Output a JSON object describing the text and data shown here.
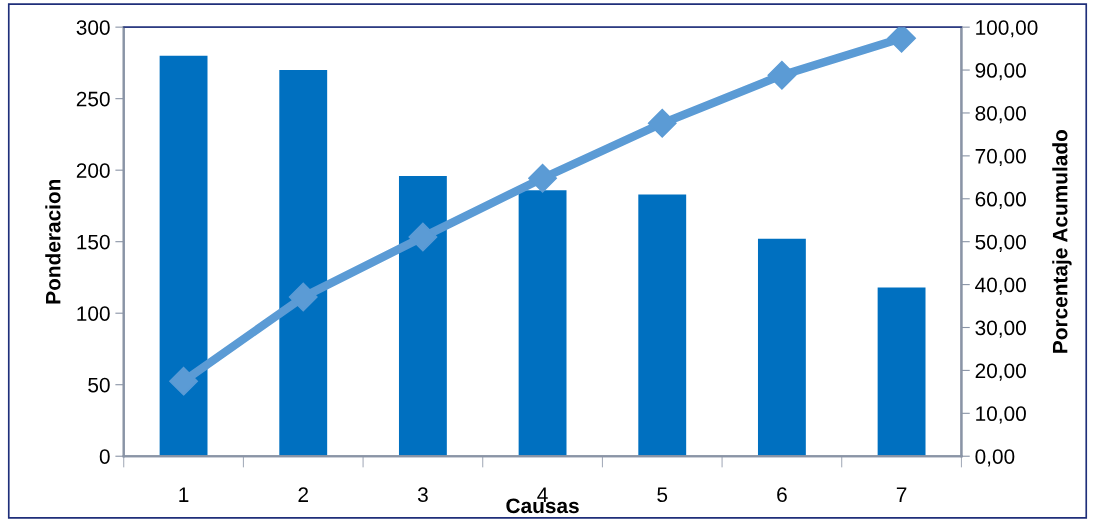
{
  "chart_data": {
    "type": "bar",
    "xlabel": "Causas",
    "ylabel": "Ponderacion",
    "y2label": "Porcentaje Acumulado",
    "categories": [
      "1",
      "2",
      "3",
      "4",
      "5",
      "6",
      "7"
    ],
    "series": [
      {
        "color": "#0070c0",
        "values": [
          280,
          270,
          196,
          186,
          183,
          152,
          118
        ]
      },
      {
        "type": "line",
        "axis": "y2",
        "color": "#5b9bd5",
        "marker": "diamond",
        "values": [
          17.5,
          37.1,
          51.1,
          64.8,
          77.6,
          88.8,
          97.4
        ]
      }
    ],
    "ylim": [
      0,
      300
    ],
    "yticks": [
      0,
      50,
      100,
      150,
      200,
      250,
      300
    ],
    "y2lim": [
      0,
      100
    ],
    "y2ticks": [
      {
        "value": 0,
        "label": "0,00"
      },
      {
        "value": 10,
        "label": "10,00"
      },
      {
        "value": 20,
        "label": "20,00"
      },
      {
        "value": 30,
        "label": "30,00"
      },
      {
        "value": 40,
        "label": "40,00"
      },
      {
        "value": 50,
        "label": "50,00"
      },
      {
        "value": 60,
        "label": "60,00"
      },
      {
        "value": 70,
        "label": "70,00"
      },
      {
        "value": 80,
        "label": "80,00"
      },
      {
        "value": 90,
        "label": "90,00"
      },
      {
        "value": 100,
        "label": "100,00"
      }
    ],
    "grid": false,
    "legend": false
  }
}
